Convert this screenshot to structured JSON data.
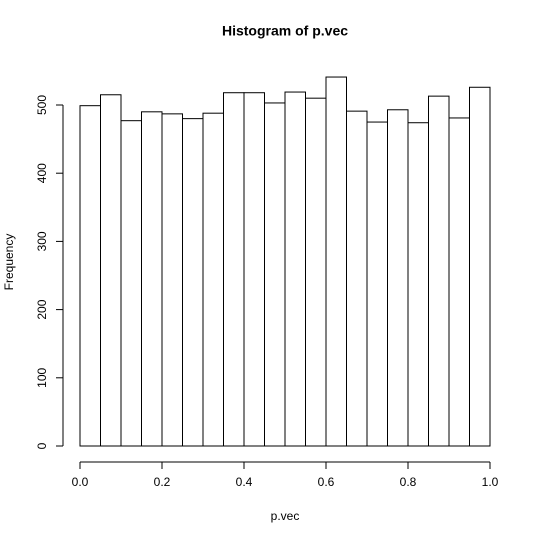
{
  "chart_data": {
    "type": "histogram",
    "title": "Histogram of p.vec",
    "x_label": "p.vec",
    "y_label": "Frequency",
    "bins": [
      0,
      0.05,
      0.1,
      0.15,
      0.2,
      0.25,
      0.3,
      0.35,
      0.4,
      0.45,
      0.5,
      0.55,
      0.6,
      0.65,
      0.7,
      0.75,
      0.8,
      0.85,
      0.9,
      0.95,
      1
    ],
    "counts": [
      499,
      515,
      477,
      490,
      487,
      480,
      488,
      518,
      518,
      503,
      519,
      510,
      541,
      491,
      475,
      493,
      474,
      513,
      481,
      526
    ],
    "color": "#ffffff",
    "edge_color": "#000000",
    "xlim": [
      0,
      1
    ],
    "xticks": [
      {
        "value": 0,
        "label": "0.0"
      },
      {
        "value": 0.2,
        "label": "0.2"
      },
      {
        "value": 0.4,
        "label": "0.4"
      },
      {
        "value": 0.6,
        "label": "0.6"
      },
      {
        "value": 0.8,
        "label": "0.8"
      },
      {
        "value": 1,
        "label": "1.0"
      }
    ],
    "ylim": [
      0,
      500
    ],
    "yticks": [
      0,
      100,
      200,
      300,
      400,
      500
    ]
  }
}
